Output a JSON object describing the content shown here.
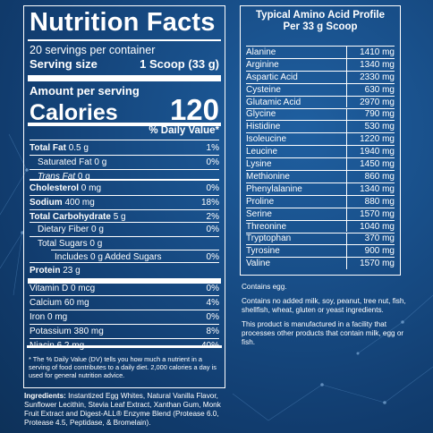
{
  "nutrition": {
    "title": "Nutrition Facts",
    "servings": "20 servings per container",
    "serving_size_label": "Serving size",
    "serving_size_value": "1 Scoop (33 g)",
    "amount_per_serving": "Amount per serving",
    "calories_label": "Calories",
    "calories_value": "120",
    "dv_header": "% Daily Value*",
    "rows": [
      {
        "name": "Total Fat",
        "amount": "0.5 g",
        "dv": "1%"
      },
      {
        "name": "Saturated Fat",
        "amount": "0 g",
        "dv": "0%"
      },
      {
        "name": "Trans Fat",
        "amount": "0 g",
        "dv": ""
      },
      {
        "name": "Cholesterol",
        "amount": "0 mg",
        "dv": "0%"
      },
      {
        "name": "Sodium",
        "amount": "400 mg",
        "dv": "18%"
      },
      {
        "name": "Total Carbohydrate",
        "amount": "5 g",
        "dv": "2%"
      },
      {
        "name": "Dietary Fiber",
        "amount": "0 g",
        "dv": "0%"
      },
      {
        "name": "Total Sugars",
        "amount": "0 g",
        "dv": ""
      },
      {
        "name": "Includes 0 g Added Sugars",
        "amount": "",
        "dv": "0%"
      },
      {
        "name": "Protein",
        "amount": "23 g",
        "dv": ""
      },
      {
        "name": "Vitamin D",
        "amount": "0 mcg",
        "dv": "0%"
      },
      {
        "name": "Calcium",
        "amount": "60 mg",
        "dv": "4%"
      },
      {
        "name": "Iron",
        "amount": "0 mg",
        "dv": "0%"
      },
      {
        "name": "Potassium",
        "amount": "380 mg",
        "dv": "8%"
      },
      {
        "name": "Niacin",
        "amount": "6.2 mg",
        "dv": "40%"
      }
    ],
    "footnote": "* The % Daily Value (DV) tells you how much a nutrient in a serving of food contributes to a daily diet. 2,000 calories a day is used for general nutrition advice."
  },
  "ingredients": {
    "label": "Ingredients:",
    "text": " Instantized Egg Whites, Natural Vanilla Flavor, Sunflower Lecithin, Stevia Leaf Extract, Xanthan Gum, Monk Fruit Extract and Digest-ALL® Enzyme Blend (Protease 6.0, Protease 4.5, Peptidase, & Bromelain)."
  },
  "amino": {
    "title": "Typical Amino Acid Profile",
    "subtitle": "Per 33 g Scoop",
    "rows": [
      {
        "name": "Alanine",
        "value": "1410 mg"
      },
      {
        "name": "Arginine",
        "value": "1340 mg"
      },
      {
        "name": "Aspartic Acid",
        "value": "2330 mg"
      },
      {
        "name": "Cysteine",
        "value": "630 mg"
      },
      {
        "name": "Glutamic Acid",
        "value": "2970 mg"
      },
      {
        "name": "Glycine",
        "value": "790 mg"
      },
      {
        "name": "Histidine",
        "value": "530 mg"
      },
      {
        "name": "Isoleucine",
        "value": "1220 mg"
      },
      {
        "name": "Leucine",
        "value": "1940 mg"
      },
      {
        "name": "Lysine",
        "value": "1450 mg"
      },
      {
        "name": "Methionine",
        "value": "860 mg"
      },
      {
        "name": "Phenylalanine",
        "value": "1340 mg"
      },
      {
        "name": "Proline",
        "value": "880 mg"
      },
      {
        "name": "Serine",
        "value": "1570 mg"
      },
      {
        "name": "Threonine",
        "value": "1040 mg"
      },
      {
        "name": "Tryptophan",
        "value": "370 mg"
      },
      {
        "name": "Tyrosine",
        "value": "900 mg"
      },
      {
        "name": "Valine",
        "value": "1570 mg"
      }
    ]
  },
  "notes": [
    "Contains egg.",
    "Contains no added milk, soy, peanut, tree nut, fish, shellfish, wheat, gluten or yeast ingredients.",
    "This product is manufactured in a facility that processes other products that contain milk, egg or fish."
  ]
}
